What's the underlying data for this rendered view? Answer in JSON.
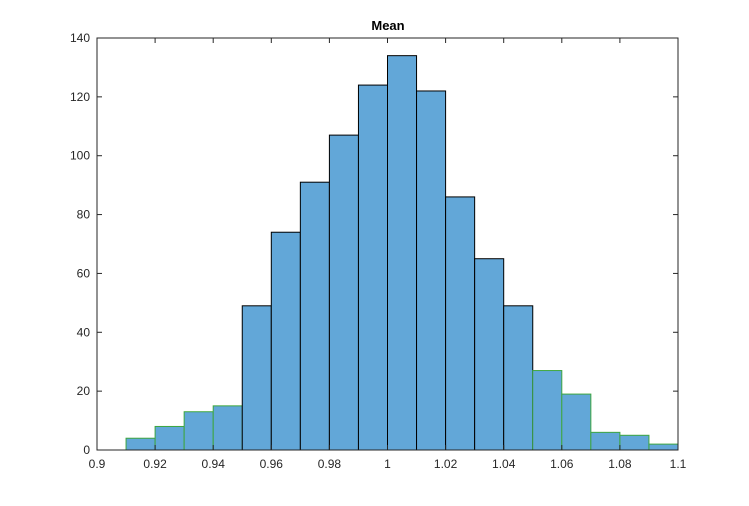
{
  "chart_data": {
    "type": "bar",
    "title": "Mean",
    "xlabel": "",
    "ylabel": "",
    "xlim": [
      0.9,
      1.1
    ],
    "ylim": [
      0,
      140
    ],
    "x_ticks": [
      0.9,
      0.92,
      0.94,
      0.96,
      0.98,
      1,
      1.02,
      1.04,
      1.06,
      1.08,
      1.1
    ],
    "x_tick_labels": [
      "0.9",
      "0.92",
      "0.94",
      "0.96",
      "0.98",
      "1",
      "1.02",
      "1.04",
      "1.06",
      "1.08",
      "1.1"
    ],
    "y_ticks": [
      0,
      20,
      40,
      60,
      80,
      100,
      120,
      140
    ],
    "y_tick_labels": [
      "0",
      "20",
      "40",
      "60",
      "80",
      "100",
      "120",
      "140"
    ],
    "bin_edges": [
      0.91,
      0.92,
      0.93,
      0.94,
      0.95,
      0.96,
      0.97,
      0.98,
      0.99,
      1.0,
      1.01,
      1.02,
      1.03,
      1.04,
      1.05,
      1.06,
      1.07,
      1.08,
      1.09,
      1.1
    ],
    "values": [
      4,
      8,
      13,
      15,
      49,
      74,
      91,
      107,
      124,
      134,
      122,
      86,
      65,
      49,
      27,
      19,
      6,
      5,
      2
    ],
    "grid": false,
    "legend": "none",
    "colors": {
      "bar_fill": "#62a7d8",
      "bar_edge_strong": "#000000",
      "bar_edge_faint": "#3ea63e",
      "axes": "#262626"
    }
  }
}
